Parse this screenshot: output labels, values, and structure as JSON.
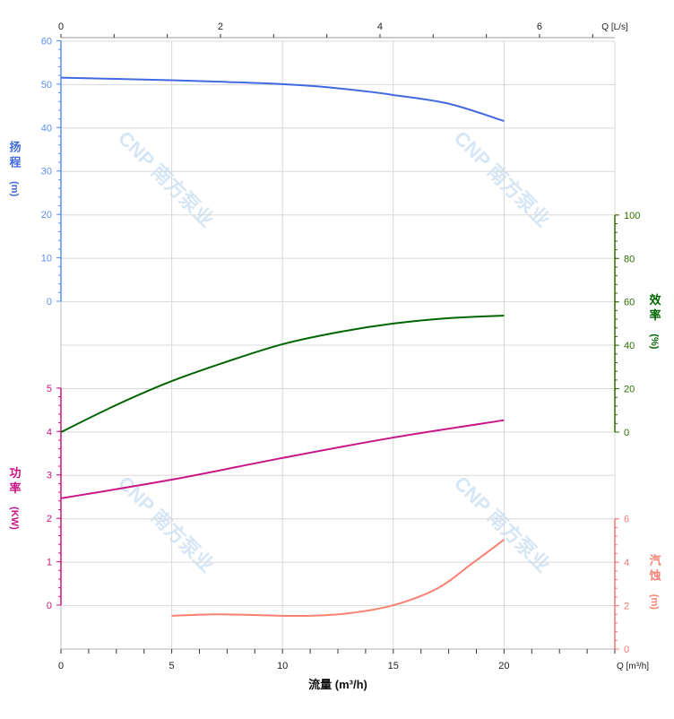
{
  "chart_data": {
    "type": "line",
    "title": "",
    "x_axis": {
      "label": "流量 (m³/h)",
      "unit_label": "Q [m³/h]",
      "range": [
        0,
        25
      ],
      "ticks": [
        0,
        5,
        10,
        15,
        20
      ]
    },
    "x2_axis": {
      "unit_label": "Q [L/s]",
      "range": [
        0,
        6.944
      ],
      "ticks": [
        0,
        2,
        4,
        6
      ]
    },
    "grid": true,
    "axes": {
      "head": {
        "label_chars": [
          "扬",
          "程",
          "(m)"
        ],
        "side": "left",
        "range": [
          0,
          60
        ],
        "ticks": [
          0,
          10,
          20,
          30,
          40,
          50,
          60
        ],
        "color": "#4169e1",
        "tick_color": "#5b8def"
      },
      "power": {
        "label_chars": [
          "功",
          "率",
          "(KW)"
        ],
        "side": "left",
        "range": [
          0,
          5
        ],
        "ticks": [
          0,
          1,
          2,
          3,
          4,
          5
        ],
        "color": "#c71585",
        "tick_color": "#c71585"
      },
      "efficiency": {
        "label_chars": [
          "效",
          "率",
          "(%)"
        ],
        "side": "right",
        "range": [
          0,
          100
        ],
        "ticks": [
          0,
          20,
          40,
          60,
          80,
          100
        ],
        "color": "#006400",
        "tick_color": "#2e6b00"
      },
      "npsh": {
        "label_chars": [
          "汽",
          "蚀",
          "(m)"
        ],
        "side": "right",
        "range": [
          0,
          6
        ],
        "ticks": [
          0,
          2,
          4,
          6
        ],
        "color": "#fa8072",
        "tick_color": "#f07878"
      }
    },
    "series": [
      {
        "axis": "head",
        "x": [
          0,
          2.5,
          5,
          7.5,
          10,
          12,
          14,
          15,
          17.5,
          20
        ],
        "y": [
          51.5,
          51.2,
          50.9,
          50.5,
          50.0,
          49.3,
          48.2,
          47.5,
          45.5,
          41.5
        ]
      },
      {
        "axis": "efficiency",
        "x": [
          0,
          2.5,
          5,
          7.5,
          10,
          12.5,
          15,
          17.5,
          20
        ],
        "y": [
          0,
          12.5,
          23.5,
          32.5,
          40.5,
          46,
          50,
          52.5,
          53.7
        ]
      },
      {
        "axis": "power",
        "x": [
          0,
          5,
          10,
          15,
          20
        ],
        "y": [
          2.46,
          2.89,
          3.39,
          3.86,
          4.26
        ]
      },
      {
        "axis": "npsh",
        "x": [
          5,
          7,
          9,
          11,
          13,
          15,
          17,
          18.5,
          20
        ],
        "y": [
          1.53,
          1.6,
          1.56,
          1.53,
          1.65,
          2.02,
          2.8,
          3.9,
          5.04
        ]
      }
    ]
  },
  "watermark": {
    "text": "CNP 南方泵业",
    "color": "#d6e6f5"
  }
}
